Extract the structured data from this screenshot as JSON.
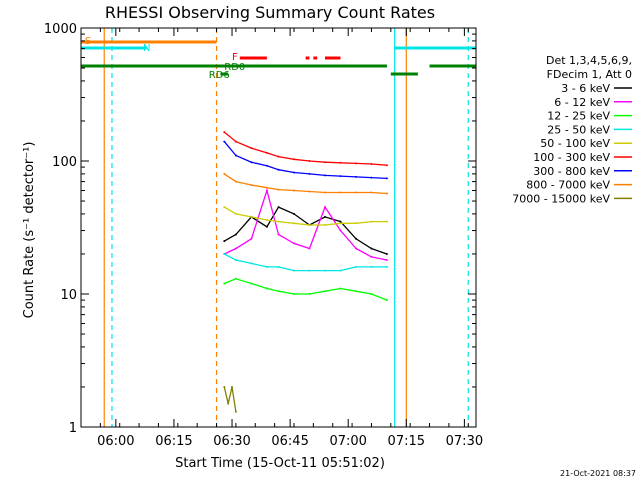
{
  "chart_data": {
    "type": "line",
    "title": "RHESSI Observing Summary Count Rates",
    "xlabel": "Start Time (15-Oct-11 05:51:02)",
    "ylabel": "Count Rate (s⁻¹ detector⁻¹)",
    "yscale": "log",
    "xlim": [
      "05:51",
      "07:33"
    ],
    "ylim": [
      1,
      1000
    ],
    "x_ticks": [
      "06:00",
      "06:15",
      "06:30",
      "06:45",
      "07:00",
      "07:15",
      "07:30"
    ],
    "y_ticks": [
      "1",
      "10",
      "100",
      "1000"
    ],
    "legend_header": [
      "Det 1,3,4,5,6,9,",
      "FDecim 1, Att 0"
    ],
    "legend_position": "right",
    "series": [
      {
        "name": "3 - 6 keV",
        "color": "#000000",
        "x": [
          "06:28",
          "06:31",
          "06:35",
          "06:39",
          "06:42",
          "06:46",
          "06:50",
          "06:54",
          "06:58",
          "07:02",
          "07:06",
          "07:10"
        ],
        "y": [
          25,
          28,
          38,
          32,
          45,
          40,
          33,
          38,
          35,
          26,
          22,
          20
        ]
      },
      {
        "name": "6 - 12 keV",
        "color": "#ff00ff",
        "x": [
          "06:28",
          "06:31",
          "06:35",
          "06:39",
          "06:42",
          "06:46",
          "06:50",
          "06:54",
          "06:58",
          "07:02",
          "07:06",
          "07:10"
        ],
        "y": [
          20,
          22,
          26,
          60,
          28,
          24,
          22,
          45,
          30,
          22,
          19,
          18
        ]
      },
      {
        "name": "12 - 25 keV",
        "color": "#00ff00",
        "x": [
          "06:28",
          "06:31",
          "06:35",
          "06:39",
          "06:42",
          "06:46",
          "06:50",
          "06:54",
          "06:58",
          "07:02",
          "07:06",
          "07:10"
        ],
        "y": [
          12,
          13,
          12,
          11,
          10.5,
          10,
          10,
          10.5,
          11,
          10.5,
          10,
          9
        ]
      },
      {
        "name": "25 - 50 keV",
        "color": "#00e5e5",
        "x": [
          "06:28",
          "06:31",
          "06:35",
          "06:39",
          "06:42",
          "06:46",
          "06:50",
          "06:54",
          "06:58",
          "07:02",
          "07:06",
          "07:10"
        ],
        "y": [
          20,
          18,
          17,
          16,
          16,
          15,
          15,
          15,
          15,
          16,
          16,
          16
        ]
      },
      {
        "name": "50 - 100 keV",
        "color": "#cccc00",
        "x": [
          "06:28",
          "06:31",
          "06:35",
          "06:39",
          "06:42",
          "06:46",
          "06:50",
          "06:54",
          "06:58",
          "07:02",
          "07:06",
          "07:10"
        ],
        "y": [
          45,
          40,
          38,
          36,
          35,
          34,
          33,
          33,
          34,
          34,
          35,
          35
        ]
      },
      {
        "name": "100 - 300 keV",
        "color": "#ff0000",
        "x": [
          "06:28",
          "06:31",
          "06:35",
          "06:39",
          "06:42",
          "06:46",
          "06:50",
          "06:54",
          "06:58",
          "07:02",
          "07:06",
          "07:10"
        ],
        "y": [
          165,
          140,
          125,
          115,
          108,
          103,
          100,
          98,
          97,
          96,
          95,
          93
        ]
      },
      {
        "name": "300 - 800 keV",
        "color": "#0000ff",
        "x": [
          "06:28",
          "06:31",
          "06:35",
          "06:39",
          "06:42",
          "06:46",
          "06:50",
          "06:54",
          "06:58",
          "07:02",
          "07:06",
          "07:10"
        ],
        "y": [
          140,
          110,
          98,
          92,
          86,
          82,
          80,
          78,
          77,
          76,
          75,
          74
        ]
      },
      {
        "name": "800 - 7000 keV",
        "color": "#ff8000",
        "x": [
          "06:28",
          "06:31",
          "06:35",
          "06:39",
          "06:42",
          "06:46",
          "06:50",
          "06:54",
          "06:58",
          "07:02",
          "07:06",
          "07:10"
        ],
        "y": [
          80,
          70,
          66,
          63,
          61,
          60,
          59,
          58,
          58,
          58,
          58,
          57
        ]
      },
      {
        "name": "7000 - 15000 keV",
        "color": "#808000",
        "x": [
          "06:28",
          "06:29",
          "06:30",
          "06:31"
        ],
        "y": [
          2,
          1.5,
          2,
          1.3
        ]
      }
    ],
    "flag_labels": [
      "S",
      "N",
      "F",
      "RD0",
      "RD6"
    ],
    "flag_colors": {
      "saa": "#ff8000",
      "night": "#00e5e5",
      "flare": "#ff0000",
      "decimation": "#008000"
    },
    "timestamp": "21-Oct-2021 08:37"
  }
}
